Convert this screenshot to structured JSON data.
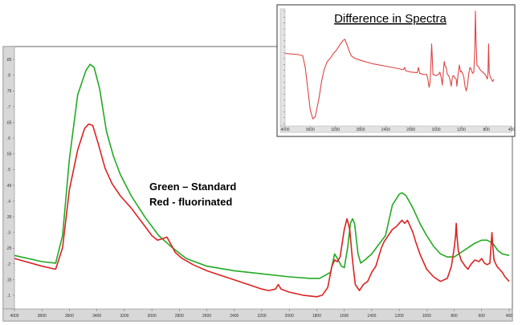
{
  "chart_data": [
    {
      "type": "line",
      "title": "",
      "xlabel": "",
      "ylabel": "",
      "x_reversed": true,
      "xlim": [
        4000,
        400
      ],
      "ylim": [
        0.06,
        0.9
      ],
      "x_ticks": [
        "4000",
        "3800",
        "3600",
        "3400",
        "3200",
        "3000",
        "2800",
        "2600",
        "2400",
        "2200",
        "2000",
        "1800",
        "1600",
        "1400",
        "1200",
        "1000",
        "800",
        "600",
        "400"
      ],
      "y_ticks": [
        ".85",
        ".8",
        ".75",
        ".7",
        ".65",
        ".6",
        ".55",
        ".5",
        ".45",
        ".4",
        ".35",
        ".3",
        ".25",
        ".2",
        ".15",
        ".1"
      ],
      "legend": [
        "Green – Standard",
        "Red - fluorinated"
      ],
      "series": [
        {
          "color": "#22aa22",
          "points": [
            [
              4000,
              0.235
            ],
            [
              3800,
              0.215
            ],
            [
              3700,
              0.21
            ],
            [
              3650,
              0.3
            ],
            [
              3600,
              0.55
            ],
            [
              3540,
              0.76
            ],
            [
              3480,
              0.84
            ],
            [
              3450,
              0.86
            ],
            [
              3420,
              0.85
            ],
            [
              3380,
              0.78
            ],
            [
              3330,
              0.64
            ],
            [
              3280,
              0.56
            ],
            [
              3230,
              0.5
            ],
            [
              3150,
              0.43
            ],
            [
              3050,
              0.36
            ],
            [
              2950,
              0.3
            ],
            [
              2900,
              0.28
            ],
            [
              2850,
              0.26
            ],
            [
              2750,
              0.225
            ],
            [
              2600,
              0.2
            ],
            [
              2400,
              0.185
            ],
            [
              2200,
              0.175
            ],
            [
              2000,
              0.165
            ],
            [
              1850,
              0.16
            ],
            [
              1780,
              0.16
            ],
            [
              1700,
              0.18
            ],
            [
              1670,
              0.24
            ],
            [
              1650,
              0.225
            ],
            [
              1620,
              0.2
            ],
            [
              1600,
              0.195
            ],
            [
              1575,
              0.26
            ],
            [
              1555,
              0.34
            ],
            [
              1540,
              0.355
            ],
            [
              1525,
              0.34
            ],
            [
              1500,
              0.24
            ],
            [
              1480,
              0.21
            ],
            [
              1450,
              0.22
            ],
            [
              1400,
              0.24
            ],
            [
              1350,
              0.27
            ],
            [
              1300,
              0.3
            ],
            [
              1250,
              0.4
            ],
            [
              1200,
              0.435
            ],
            [
              1180,
              0.44
            ],
            [
              1150,
              0.43
            ],
            [
              1100,
              0.39
            ],
            [
              1050,
              0.34
            ],
            [
              1000,
              0.3
            ],
            [
              950,
              0.265
            ],
            [
              900,
              0.24
            ],
            [
              850,
              0.23
            ],
            [
              800,
              0.23
            ],
            [
              750,
              0.245
            ],
            [
              700,
              0.26
            ],
            [
              650,
              0.275
            ],
            [
              600,
              0.285
            ],
            [
              560,
              0.285
            ],
            [
              520,
              0.275
            ],
            [
              480,
              0.25
            ],
            [
              450,
              0.24
            ],
            [
              400,
              0.235
            ]
          ]
        },
        {
          "color": "#dd2222",
          "points": [
            [
              4000,
              0.225
            ],
            [
              3800,
              0.2
            ],
            [
              3700,
              0.19
            ],
            [
              3650,
              0.26
            ],
            [
              3600,
              0.45
            ],
            [
              3540,
              0.58
            ],
            [
              3490,
              0.65
            ],
            [
              3460,
              0.665
            ],
            [
              3430,
              0.66
            ],
            [
              3390,
              0.6
            ],
            [
              3340,
              0.52
            ],
            [
              3290,
              0.47
            ],
            [
              3230,
              0.43
            ],
            [
              3150,
              0.39
            ],
            [
              3050,
              0.33
            ],
            [
              3000,
              0.3
            ],
            [
              2960,
              0.285
            ],
            [
              2920,
              0.29
            ],
            [
              2890,
              0.295
            ],
            [
              2860,
              0.27
            ],
            [
              2830,
              0.245
            ],
            [
              2780,
              0.225
            ],
            [
              2700,
              0.205
            ],
            [
              2600,
              0.185
            ],
            [
              2500,
              0.17
            ],
            [
              2400,
              0.155
            ],
            [
              2300,
              0.14
            ],
            [
              2200,
              0.125
            ],
            [
              2150,
              0.12
            ],
            [
              2100,
              0.125
            ],
            [
              2080,
              0.14
            ],
            [
              2060,
              0.125
            ],
            [
              2000,
              0.115
            ],
            [
              1900,
              0.105
            ],
            [
              1800,
              0.1
            ],
            [
              1760,
              0.105
            ],
            [
              1720,
              0.13
            ],
            [
              1690,
              0.2
            ],
            [
              1670,
              0.22
            ],
            [
              1650,
              0.215
            ],
            [
              1630,
              0.23
            ],
            [
              1600,
              0.32
            ],
            [
              1580,
              0.355
            ],
            [
              1560,
              0.32
            ],
            [
              1540,
              0.22
            ],
            [
              1520,
              0.14
            ],
            [
              1490,
              0.12
            ],
            [
              1460,
              0.14
            ],
            [
              1430,
              0.15
            ],
            [
              1400,
              0.18
            ],
            [
              1370,
              0.2
            ],
            [
              1330,
              0.26
            ],
            [
              1310,
              0.28
            ],
            [
              1280,
              0.3
            ],
            [
              1250,
              0.32
            ],
            [
              1220,
              0.33
            ],
            [
              1200,
              0.34
            ],
            [
              1180,
              0.35
            ],
            [
              1160,
              0.34
            ],
            [
              1140,
              0.35
            ],
            [
              1120,
              0.33
            ],
            [
              1100,
              0.31
            ],
            [
              1080,
              0.28
            ],
            [
              1050,
              0.24
            ],
            [
              1000,
              0.19
            ],
            [
              950,
              0.165
            ],
            [
              900,
              0.15
            ],
            [
              850,
              0.16
            ],
            [
              820,
              0.2
            ],
            [
              800,
              0.26
            ],
            [
              790,
              0.3
            ],
            [
              785,
              0.34
            ],
            [
              780,
              0.3
            ],
            [
              770,
              0.25
            ],
            [
              750,
              0.22
            ],
            [
              720,
              0.2
            ],
            [
              700,
              0.19
            ],
            [
              680,
              0.205
            ],
            [
              650,
              0.22
            ],
            [
              620,
              0.215
            ],
            [
              600,
              0.225
            ],
            [
              580,
              0.21
            ],
            [
              560,
              0.205
            ],
            [
              540,
              0.21
            ],
            [
              530,
              0.28
            ],
            [
              525,
              0.31
            ],
            [
              520,
              0.27
            ],
            [
              510,
              0.22
            ],
            [
              490,
              0.2
            ],
            [
              470,
              0.19
            ],
            [
              450,
              0.18
            ],
            [
              430,
              0.165
            ],
            [
              400,
              0.15
            ]
          ]
        }
      ]
    },
    {
      "type": "line",
      "title": "Difference in Spectra",
      "xlabel": "",
      "ylabel": "",
      "x_reversed": true,
      "xlim": [
        4000,
        400
      ],
      "ylim": [
        0,
        1
      ],
      "x_ticks": [
        "4000",
        "3600",
        "3200",
        "2800",
        "2400",
        "2000",
        "1600",
        "1200",
        "800",
        "400"
      ],
      "y_ticks": [
        "",
        "",
        "",
        "",
        "",
        "",
        "",
        "",
        "",
        "",
        "",
        "",
        "",
        "",
        "",
        "",
        "",
        "",
        "",
        ""
      ],
      "series": [
        {
          "color": "#dd4444",
          "points": [
            [
              4000,
              0.62
            ],
            [
              3800,
              0.61
            ],
            [
              3720,
              0.6
            ],
            [
              3680,
              0.5
            ],
            [
              3640,
              0.32
            ],
            [
              3600,
              0.14
            ],
            [
              3560,
              0.06
            ],
            [
              3520,
              0.08
            ],
            [
              3460,
              0.24
            ],
            [
              3420,
              0.38
            ],
            [
              3380,
              0.48
            ],
            [
              3330,
              0.55
            ],
            [
              3280,
              0.58
            ],
            [
              3230,
              0.62
            ],
            [
              3180,
              0.65
            ],
            [
              3120,
              0.7
            ],
            [
              3080,
              0.73
            ],
            [
              3050,
              0.74
            ],
            [
              3020,
              0.7
            ],
            [
              2980,
              0.64
            ],
            [
              2950,
              0.6
            ],
            [
              2900,
              0.58
            ],
            [
              2800,
              0.56
            ],
            [
              2600,
              0.53
            ],
            [
              2400,
              0.51
            ],
            [
              2200,
              0.49
            ],
            [
              2120,
              0.48
            ],
            [
              2100,
              0.5
            ],
            [
              2080,
              0.47
            ],
            [
              2000,
              0.46
            ],
            [
              1900,
              0.455
            ],
            [
              1880,
              0.5
            ],
            [
              1860,
              0.45
            ],
            [
              1800,
              0.44
            ],
            [
              1750,
              0.44
            ],
            [
              1730,
              0.4
            ],
            [
              1710,
              0.33
            ],
            [
              1695,
              0.38
            ],
            [
              1680,
              0.55
            ],
            [
              1670,
              0.7
            ],
            [
              1660,
              0.58
            ],
            [
              1650,
              0.44
            ],
            [
              1600,
              0.43
            ],
            [
              1560,
              0.44
            ],
            [
              1540,
              0.46
            ],
            [
              1520,
              0.42
            ],
            [
              1500,
              0.35
            ],
            [
              1490,
              0.42
            ],
            [
              1480,
              0.49
            ],
            [
              1470,
              0.55
            ],
            [
              1460,
              0.52
            ],
            [
              1440,
              0.5
            ],
            [
              1420,
              0.44
            ],
            [
              1400,
              0.43
            ],
            [
              1380,
              0.4
            ],
            [
              1360,
              0.34
            ],
            [
              1340,
              0.42
            ],
            [
              1320,
              0.43
            ],
            [
              1300,
              0.41
            ],
            [
              1280,
              0.4
            ],
            [
              1270,
              0.34
            ],
            [
              1250,
              0.44
            ],
            [
              1230,
              0.52
            ],
            [
              1210,
              0.46
            ],
            [
              1200,
              0.47
            ],
            [
              1180,
              0.45
            ],
            [
              1160,
              0.42
            ],
            [
              1140,
              0.34
            ],
            [
              1120,
              0.3
            ],
            [
              1100,
              0.35
            ],
            [
              1080,
              0.45
            ],
            [
              1060,
              0.5
            ],
            [
              1040,
              0.48
            ],
            [
              1020,
              0.45
            ],
            [
              1000,
              0.46
            ],
            [
              985,
              0.65
            ],
            [
              975,
              0.98
            ],
            [
              965,
              0.75
            ],
            [
              950,
              0.52
            ],
            [
              920,
              0.5
            ],
            [
              900,
              0.48
            ],
            [
              880,
              0.47
            ],
            [
              860,
              0.46
            ],
            [
              840,
              0.45
            ],
            [
              820,
              0.44
            ],
            [
              800,
              0.42
            ],
            [
              785,
              0.4
            ],
            [
              775,
              0.44
            ],
            [
              765,
              0.7
            ],
            [
              755,
              0.46
            ],
            [
              740,
              0.42
            ],
            [
              720,
              0.4
            ],
            [
              700,
              0.38
            ],
            [
              680,
              0.4
            ]
          ]
        }
      ]
    }
  ]
}
